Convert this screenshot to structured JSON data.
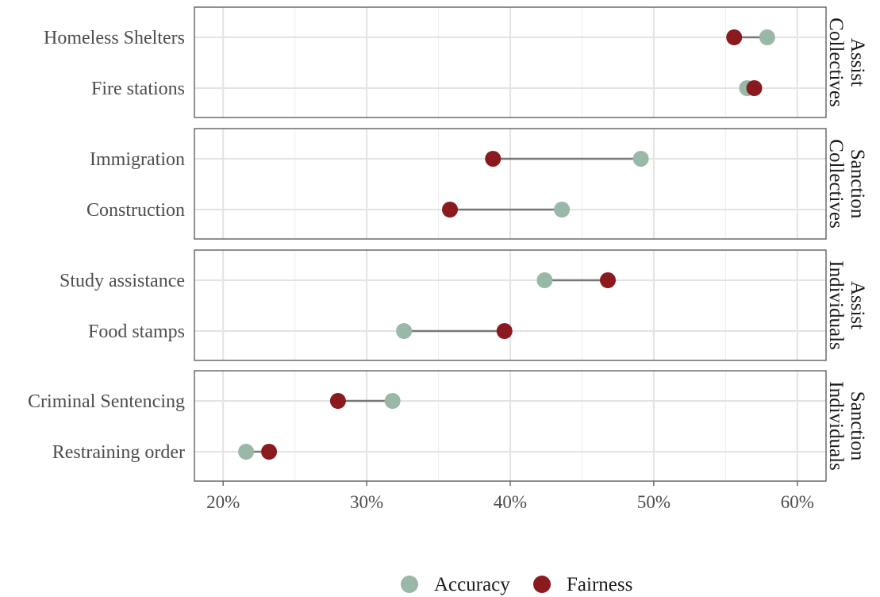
{
  "chart_data": {
    "type": "dumbbell",
    "x_ticks": [
      0.2,
      0.3,
      0.4,
      0.5,
      0.6
    ],
    "x_tick_labels": [
      "20%",
      "30%",
      "40%",
      "50%",
      "60%"
    ],
    "xlim": [
      0.18,
      0.62
    ],
    "grid": true,
    "legend_position": "bottom",
    "series": [
      {
        "name": "Accuracy",
        "color": "#99b8a8"
      },
      {
        "name": "Fairness",
        "color": "#8b1a1e"
      }
    ],
    "panels": [
      {
        "strip": [
          "Assist",
          "Collectives"
        ],
        "rows": [
          {
            "label": "Homeless Shelters",
            "accuracy": 0.579,
            "fairness": 0.556
          },
          {
            "label": "Fire stations",
            "accuracy": 0.565,
            "fairness": 0.57
          }
        ]
      },
      {
        "strip": [
          "Sanction",
          "Collectives"
        ],
        "rows": [
          {
            "label": "Immigration",
            "accuracy": 0.491,
            "fairness": 0.388
          },
          {
            "label": "Construction",
            "accuracy": 0.436,
            "fairness": 0.358
          }
        ]
      },
      {
        "strip": [
          "Assist",
          "Individuals"
        ],
        "rows": [
          {
            "label": "Study assistance",
            "accuracy": 0.424,
            "fairness": 0.468
          },
          {
            "label": "Food stamps",
            "accuracy": 0.326,
            "fairness": 0.396
          }
        ]
      },
      {
        "strip": [
          "Sanction",
          "Individuals"
        ],
        "rows": [
          {
            "label": "Criminal Sentencing",
            "accuracy": 0.318,
            "fairness": 0.28
          },
          {
            "label": "Restraining order",
            "accuracy": 0.216,
            "fairness": 0.232
          }
        ]
      }
    ]
  }
}
